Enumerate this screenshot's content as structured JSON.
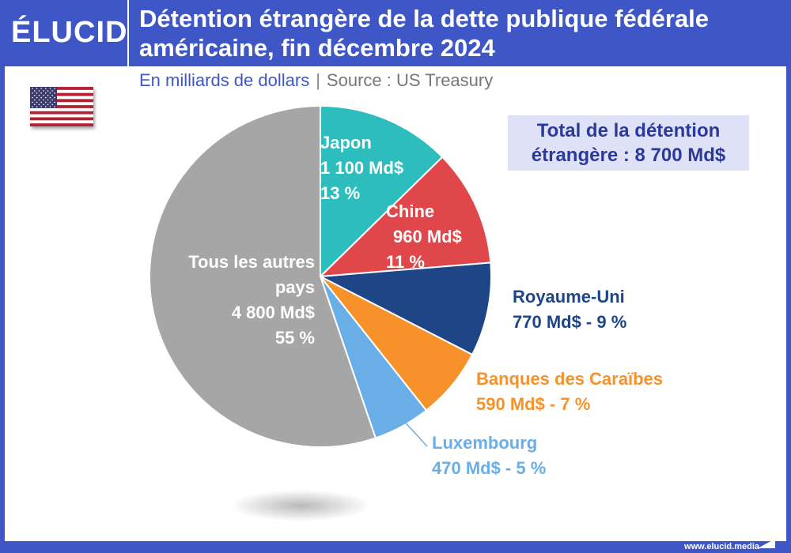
{
  "header": {
    "logo": "ÉLUCID",
    "title_line1": "Détention étrangère de la dette publique fédérale",
    "title_line2": "américaine, fin décembre 2024",
    "subtitle_unit": "En milliards de dollars",
    "subtitle_sep": "|",
    "subtitle_source": "Source : US Treasury"
  },
  "total_box": {
    "line1": "Total de la détention",
    "line2": "étrangère : 8 700 Md$"
  },
  "footer": {
    "url": "www.elucid.media"
  },
  "chart_data": {
    "type": "pie",
    "title": "Détention étrangère de la dette publique fédérale américaine, fin décembre 2024",
    "unit": "En milliards de dollars",
    "slices": [
      {
        "name": "Japon",
        "value": 1100,
        "value_label": "1 100 Md$",
        "percent_label": "13 %",
        "percent": 13,
        "color": "#2dbdbd"
      },
      {
        "name": "Chine",
        "value": 960,
        "value_label": "960 Md$",
        "percent_label": "11 %",
        "percent": 11,
        "color": "#e0474a"
      },
      {
        "name": "Royaume-Uni",
        "value": 770,
        "value_label": "770 Md$ - 9 %",
        "percent": 9,
        "color": "#1e4585"
      },
      {
        "name": "Banques des Caraïbes",
        "value": 590,
        "value_label": "590 Md$ - 7 %",
        "percent": 7,
        "color": "#f7922a"
      },
      {
        "name": "Luxembourg",
        "value": 470,
        "value_label": "470 Md$ - 5 %",
        "percent": 5,
        "color": "#6aaee8"
      },
      {
        "name": "Tous les autres pays",
        "name_line1": "Tous les autres",
        "name_line2": "pays",
        "value": 4800,
        "value_label": "4 800 Md$",
        "percent_label": "55 %",
        "percent": 55,
        "color": "#a6a6a6"
      }
    ]
  }
}
